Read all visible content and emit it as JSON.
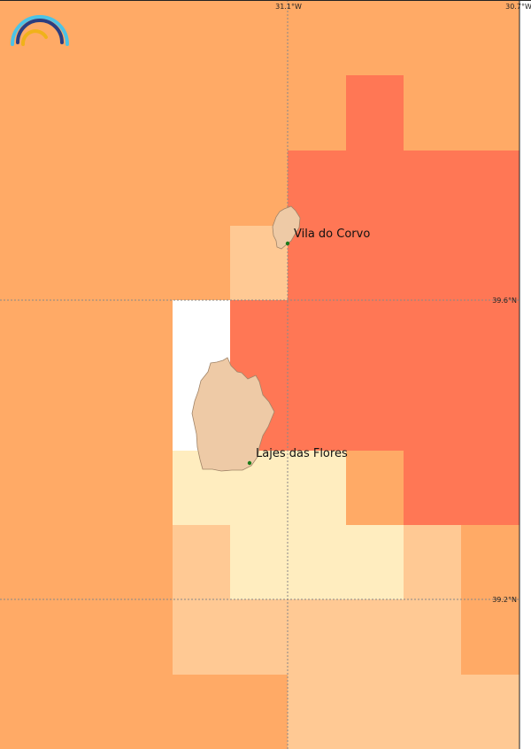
{
  "colors": {
    "low": "#ffedbf",
    "light": "#ffc994",
    "medium": "#ffaa66",
    "high": "#ff7755",
    "nodata": "#ffffff",
    "land": "#eecaa6",
    "place_marker": "#1a7a1a"
  },
  "grid_labels": {
    "lon_1": "31.1°W",
    "lon_2": "30.7°W",
    "lat_1": "39.6°N",
    "lat_2": "39.2°N"
  },
  "places": [
    {
      "name": "Vila do Corvo"
    },
    {
      "name": "Lajes das Flores"
    }
  ],
  "islands": [
    {
      "name": "corvo-island"
    },
    {
      "name": "flores-island"
    }
  ],
  "logo": {
    "icon": "rainbow-arcs-logo"
  }
}
